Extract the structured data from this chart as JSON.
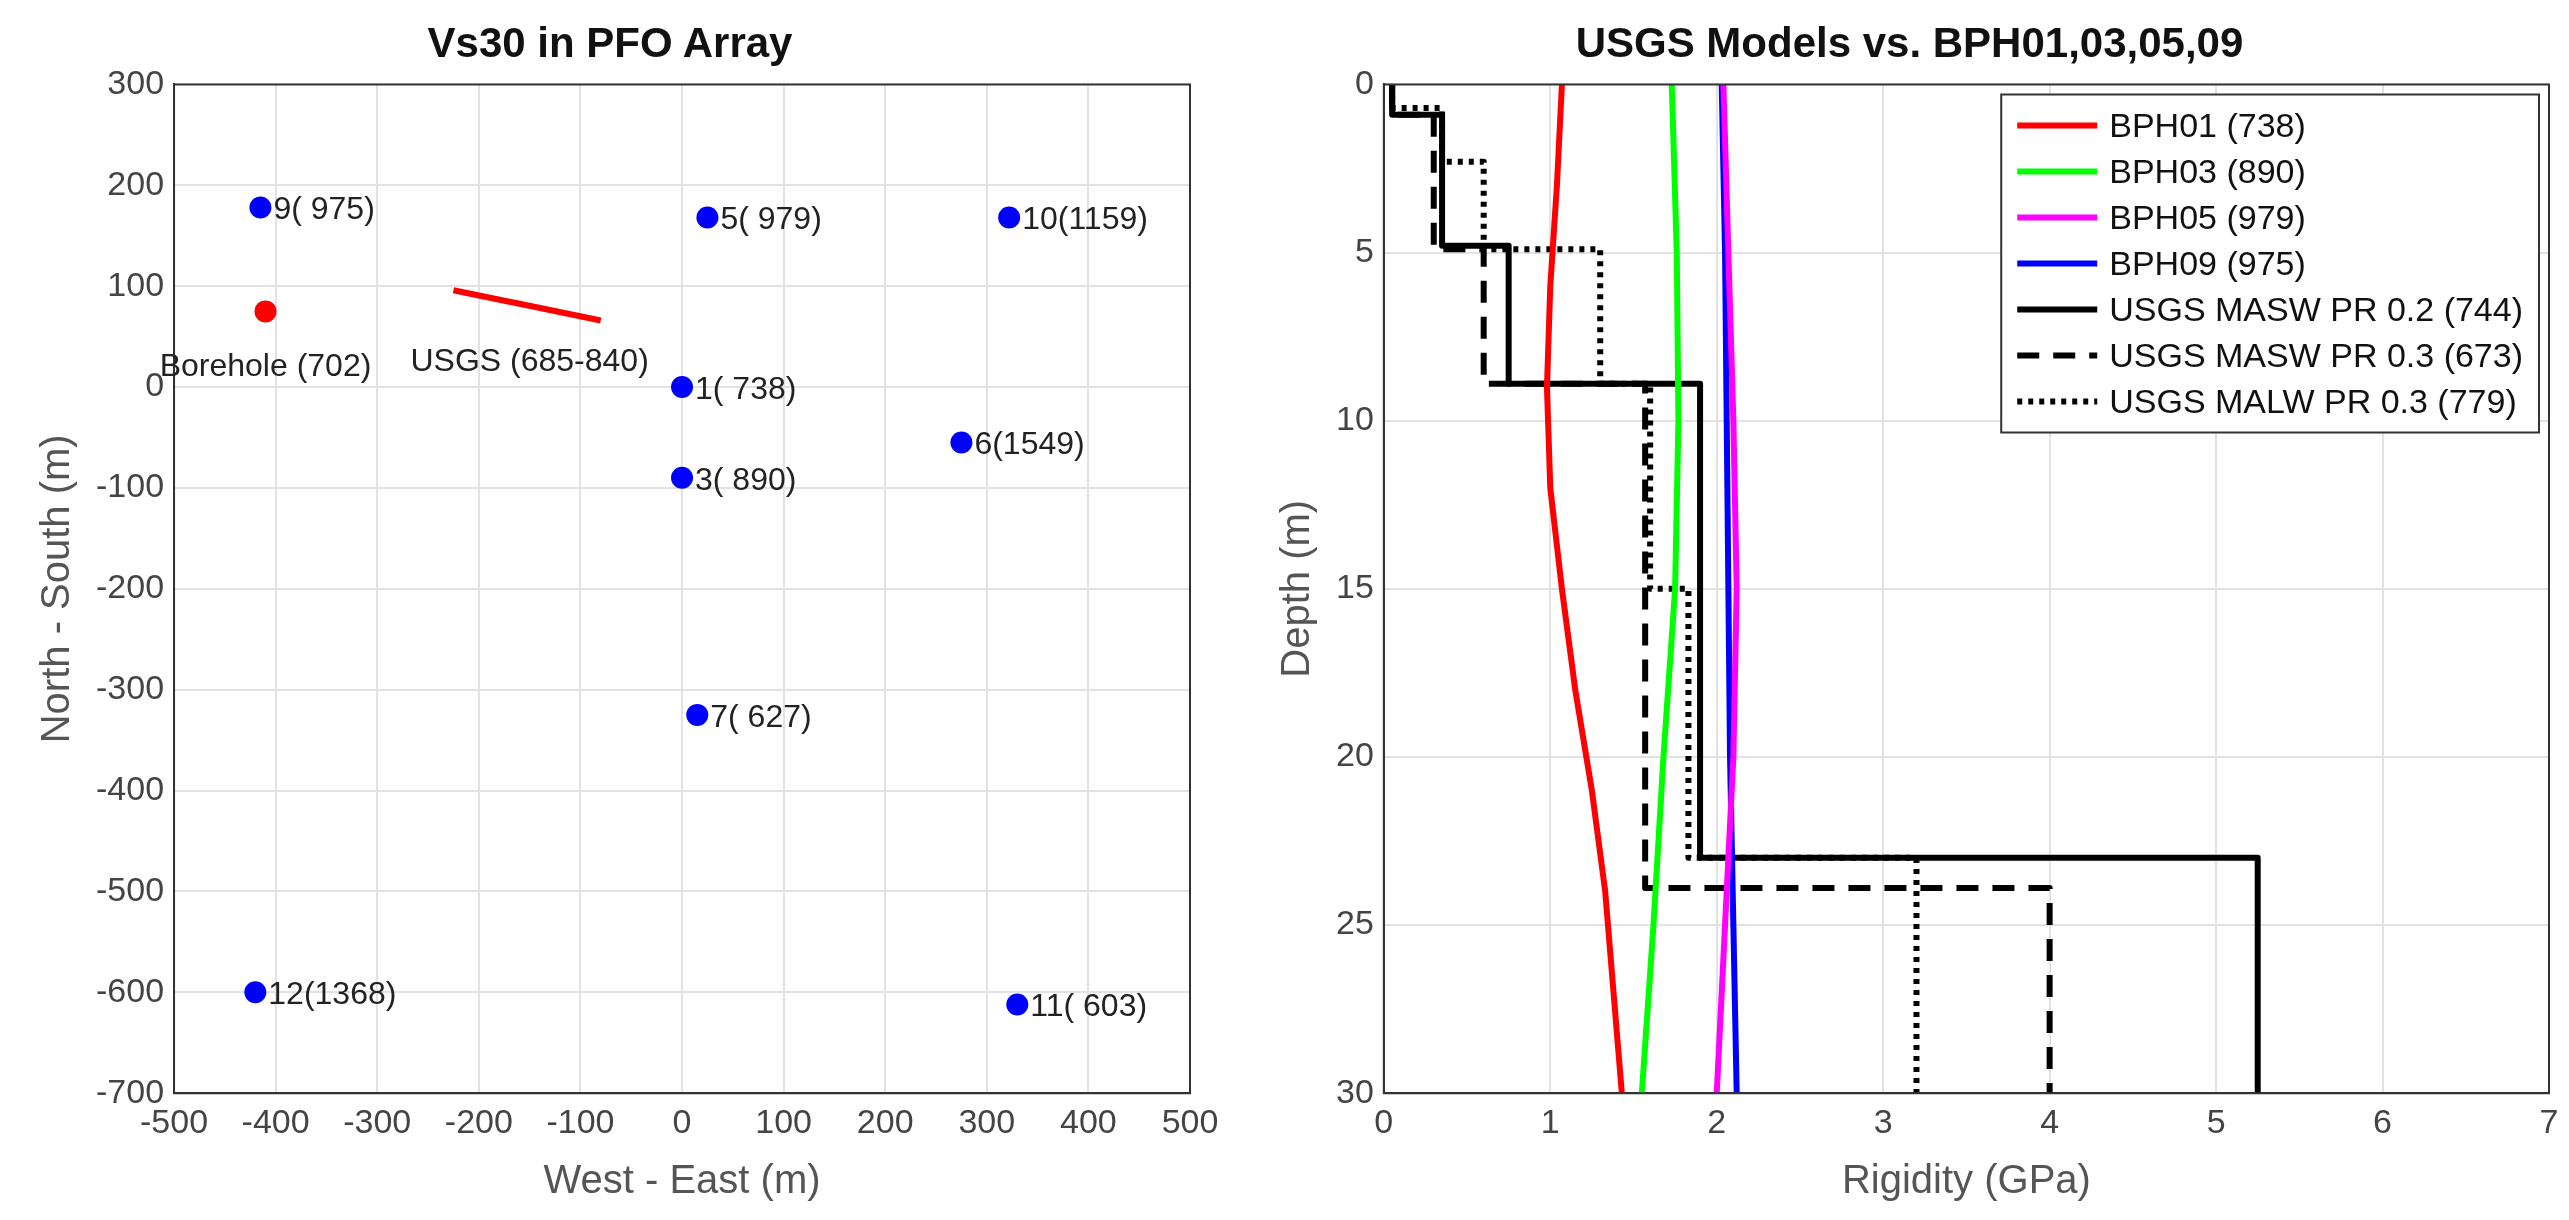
{
  "chart_data": [
    {
      "type": "scatter",
      "title": "Vs30 in PFO Array",
      "xlabel": "West - East (m)",
      "ylabel": "North - South (m)",
      "xlim": [
        -500,
        500
      ],
      "xticks": [
        -500,
        -400,
        -300,
        -200,
        -100,
        0,
        100,
        200,
        300,
        400,
        500
      ],
      "ylim": [
        -700,
        300
      ],
      "yticks": [
        -700,
        -600,
        -500,
        -400,
        -300,
        -200,
        -100,
        0,
        100,
        200,
        300
      ],
      "grid": true,
      "legend": false,
      "marker": "circle",
      "series": [
        {
          "color": "#0000ff",
          "x": [
            -415,
            25,
            322,
            0,
            275,
            0,
            15,
            -420,
            330
          ],
          "values": [
            178,
            168,
            168,
            0,
            -55,
            -90,
            -325,
            -600,
            -612
          ]
        },
        {
          "color": "#ff0000",
          "x": [
            -410
          ],
          "values": [
            75
          ]
        },
        {
          "type": "line",
          "marker": "none",
          "color": "#ff0000",
          "x": [
            -225,
            -80
          ],
          "values": [
            96,
            66
          ]
        }
      ],
      "annotations": [
        {
          "text": "9( 975)",
          "x": -415,
          "y": 178
        },
        {
          "text": "5( 979)",
          "x": 25,
          "y": 168
        },
        {
          "text": "10(1159)",
          "x": 322,
          "y": 168
        },
        {
          "text": "1( 738)",
          "x": 0,
          "y": 0
        },
        {
          "text": "6(1549)",
          "x": 275,
          "y": -55
        },
        {
          "text": "3( 890)",
          "x": 0,
          "y": -90
        },
        {
          "text": "7( 627)",
          "x": 15,
          "y": -325
        },
        {
          "text": "12(1368)",
          "x": -420,
          "y": -600
        },
        {
          "text": "11( 603)",
          "x": 330,
          "y": -612
        },
        {
          "text": "Borehole (702)",
          "x": -410,
          "y": 75
        },
        {
          "text": "USGS (685-840)",
          "x": -150,
          "y": 80
        }
      ]
    },
    {
      "type": "line",
      "title": "USGS Models vs. BPH01,03,05,09",
      "xlabel": "Rigidity (GPa)",
      "ylabel": "Depth (m)",
      "xlim": [
        0,
        7
      ],
      "xticks": [
        0,
        1,
        2,
        3,
        4,
        5,
        6,
        7
      ],
      "ylim": [
        30,
        0
      ],
      "yticks": [
        0,
        5,
        10,
        15,
        20,
        25,
        30
      ],
      "grid": true,
      "legend": "top right",
      "marker": "none",
      "series": [
        {
          "name": "BPH01 (738)",
          "color": "#ff0000",
          "x": [
            1.07,
            1.04,
            1.0,
            0.98,
            1.0,
            1.07,
            1.15,
            1.25,
            1.33,
            1.38,
            1.43
          ],
          "values": [
            0,
            3,
            6,
            9,
            12,
            15,
            18,
            21,
            24,
            27,
            30
          ]
        },
        {
          "name": "BPH03 (890)",
          "color": "#00ff00",
          "x": [
            1.73,
            1.76,
            1.77,
            1.75,
            1.68,
            1.62,
            1.55
          ],
          "values": [
            0,
            5,
            10,
            15,
            20,
            25,
            30
          ]
        },
        {
          "name": "BPH05 (979)",
          "color": "#ff00ff",
          "x": [
            2.04,
            2.07,
            2.1,
            2.12,
            2.1,
            2.05,
            2.0
          ],
          "values": [
            0,
            5,
            10,
            15,
            20,
            25,
            30
          ]
        },
        {
          "name": "BPH09 (975)",
          "color": "#0000ff",
          "x": [
            2.03,
            2.05,
            2.06,
            2.08,
            2.1,
            2.12
          ],
          "values": [
            0,
            5,
            10,
            20,
            25,
            30
          ]
        },
        {
          "name": "USGS MASW PR 0.2 (744)",
          "color": "#000000",
          "line_style": "solid",
          "x": [
            0.05,
            0.05,
            0.35,
            0.35,
            0.75,
            0.75,
            1.9,
            1.9,
            5.25,
            5.25
          ],
          "values": [
            0,
            0.9,
            0.9,
            4.8,
            4.8,
            8.9,
            8.9,
            23,
            23,
            30
          ]
        },
        {
          "name": "USGS MASW PR 0.3 (673)",
          "color": "#000000",
          "line_style": "dashed",
          "x": [
            0.05,
            0.05,
            0.3,
            0.3,
            0.6,
            0.6,
            1.57,
            1.57,
            4.0,
            4.0
          ],
          "values": [
            0,
            0.9,
            0.9,
            4.9,
            4.9,
            8.9,
            8.9,
            23.9,
            23.9,
            30
          ]
        },
        {
          "name": "USGS MALW PR 0.3 (779)",
          "color": "#000000",
          "line_style": "dotted",
          "x": [
            0.05,
            0.05,
            0.35,
            0.35,
            0.6,
            0.6,
            1.3,
            1.3,
            1.6,
            1.6,
            1.83,
            1.83,
            3.2,
            3.2
          ],
          "values": [
            0,
            0.7,
            0.7,
            2.3,
            2.3,
            4.9,
            4.9,
            8.9,
            8.9,
            15,
            15,
            23,
            23,
            30
          ]
        }
      ]
    }
  ]
}
